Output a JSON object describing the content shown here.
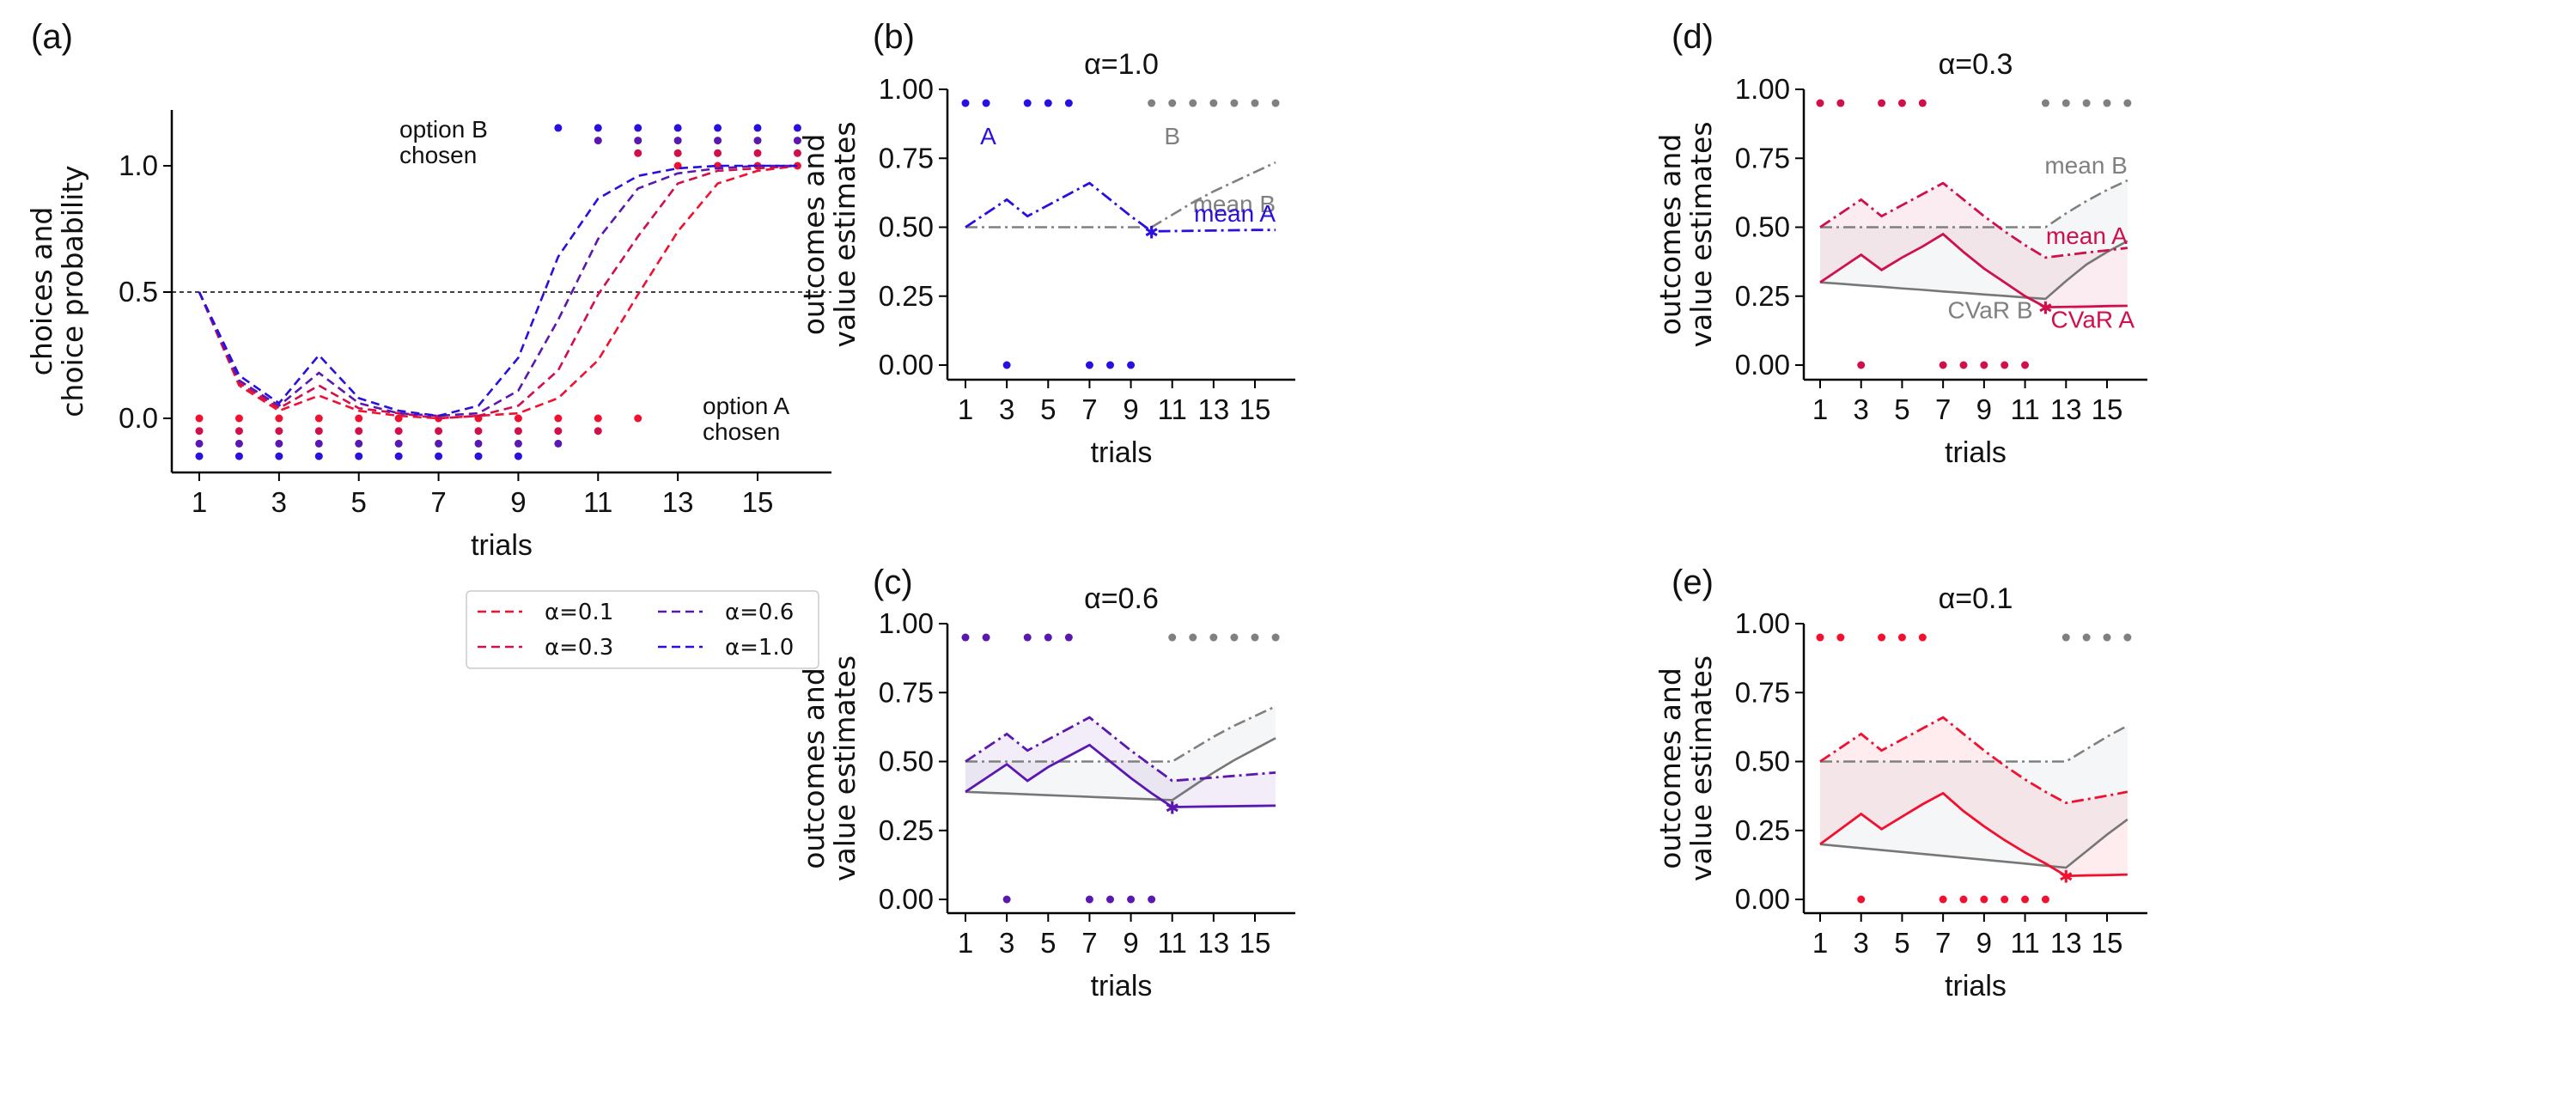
{
  "figure": {
    "panel_labels": [
      "(a)",
      "(b)",
      "(c)",
      "(d)",
      "(e)"
    ]
  },
  "colors": {
    "alpha_1.0": "#2a10e0",
    "alpha_0.6": "#5a18b0",
    "alpha_0.3": "#d0104a",
    "alpha_0.1": "#f01030",
    "option_b": "#808080"
  },
  "chart_data": [
    {
      "id": "a",
      "type": "line",
      "panel_label": "(a)",
      "title": "",
      "xlabel": "trials",
      "ylabel": "choices and\nchoice probability",
      "ylabel_lines": [
        "choices and",
        "choice probability"
      ],
      "x": [
        1,
        2,
        3,
        4,
        5,
        6,
        7,
        8,
        9,
        10,
        11,
        12,
        13,
        14,
        15,
        16
      ],
      "xticks": [
        1,
        3,
        5,
        7,
        9,
        11,
        13,
        15
      ],
      "yticks": [
        0.0,
        0.5,
        1.0
      ],
      "ytick_labels": [
        "0.0",
        "0.5",
        "1.0"
      ],
      "xlim": [
        0.25,
        17.1
      ],
      "ylim": [
        -0.22,
        1.22
      ],
      "reference_line": 0.5,
      "annotations": {
        "option_b": [
          "option B",
          "chosen"
        ],
        "option_a": [
          "option A",
          "chosen"
        ]
      },
      "series": [
        {
          "name": "α=0.1",
          "key": "alpha_0.1",
          "values": [
            0.5,
            0.13,
            0.03,
            0.09,
            0.03,
            0.01,
            0.0,
            0.01,
            0.02,
            0.08,
            0.23,
            0.49,
            0.74,
            0.93,
            0.98,
            1.0
          ],
          "choices": [
            "A",
            "A",
            "A",
            "A",
            "A",
            "A",
            "A",
            "A",
            "A",
            "A",
            "A",
            "A",
            "B",
            "B",
            "B",
            "B"
          ]
        },
        {
          "name": "α=0.3",
          "key": "alpha_0.3",
          "values": [
            0.5,
            0.14,
            0.04,
            0.13,
            0.04,
            0.02,
            0.0,
            0.01,
            0.05,
            0.19,
            0.49,
            0.72,
            0.93,
            0.98,
            0.99,
            1.0
          ],
          "choices": [
            "A",
            "A",
            "A",
            "A",
            "A",
            "A",
            "A",
            "A",
            "A",
            "A",
            "A",
            "B",
            "B",
            "B",
            "B",
            "B"
          ]
        },
        {
          "name": "α=0.6",
          "key": "alpha_0.6",
          "values": [
            0.5,
            0.15,
            0.05,
            0.18,
            0.06,
            0.02,
            0.01,
            0.02,
            0.11,
            0.39,
            0.71,
            0.91,
            0.97,
            0.99,
            1.0,
            1.0
          ],
          "choices": [
            "A",
            "A",
            "A",
            "A",
            "A",
            "A",
            "A",
            "A",
            "A",
            "A",
            "B",
            "B",
            "B",
            "B",
            "B",
            "B"
          ]
        },
        {
          "name": "α=1.0",
          "key": "alpha_1.0",
          "values": [
            0.5,
            0.17,
            0.06,
            0.25,
            0.08,
            0.03,
            0.01,
            0.05,
            0.24,
            0.64,
            0.87,
            0.96,
            0.99,
            1.0,
            1.0,
            1.0
          ],
          "choices": [
            "A",
            "A",
            "A",
            "A",
            "A",
            "A",
            "A",
            "A",
            "A",
            "B",
            "B",
            "B",
            "B",
            "B",
            "B",
            "B"
          ]
        }
      ],
      "legend": {
        "placement": "below",
        "columns": 2,
        "entries": [
          "α=0.1",
          "α=0.3",
          "α=0.6",
          "α=1.0"
        ]
      }
    },
    {
      "id": "b",
      "type": "line",
      "panel_label": "(b)",
      "title": "α=1.0",
      "key": "alpha_1.0",
      "xlabel": "trials",
      "ylabel_lines": [
        "outcomes and",
        "value estimates"
      ],
      "x": [
        1,
        2,
        3,
        4,
        5,
        6,
        7,
        8,
        9,
        10,
        11,
        12,
        13,
        14,
        15,
        16
      ],
      "xticks": [
        1,
        3,
        5,
        7,
        9,
        11,
        13,
        15
      ],
      "yticks": [
        0.0,
        0.25,
        0.5,
        0.75,
        1.0
      ],
      "ytick_labels": [
        "0.00",
        "0.25",
        "0.50",
        "0.75",
        "1.00"
      ],
      "ylim": [
        -0.105,
        1.0
      ],
      "switch_trial": 10,
      "outcomes_A": {
        "x": [
          1,
          2,
          3,
          4,
          5,
          6,
          7,
          8,
          9
        ],
        "y": [
          0.95,
          0.95,
          0,
          0.95,
          0.95,
          0.95,
          0,
          0,
          0
        ]
      },
      "outcomes_B": {
        "x": [
          10,
          11,
          12,
          13,
          14,
          15,
          16
        ],
        "y": [
          0.95,
          0.95,
          0.95,
          0.95,
          0.95,
          0.95,
          0.95
        ]
      },
      "mean_A": [
        0.5,
        0.55,
        0.6,
        0.54,
        0.58,
        0.62,
        0.66,
        0.6,
        0.54,
        0.485,
        0.486,
        0.487,
        0.488,
        0.489,
        0.49,
        0.49
      ],
      "mean_B": [
        0.5,
        0.5,
        0.5,
        0.5,
        0.5,
        0.5,
        0.5,
        0.5,
        0.5,
        0.5,
        0.545,
        0.59,
        0.63,
        0.665,
        0.7,
        0.735
      ],
      "cvar_A": null,
      "cvar_B": null,
      "labels": {
        "A": "A",
        "B": "B",
        "mean_A": "mean A",
        "mean_B": "mean B"
      }
    },
    {
      "id": "c",
      "type": "line",
      "panel_label": "(c)",
      "title": "α=0.6",
      "key": "alpha_0.6",
      "xlabel": "trials",
      "ylabel_lines": [
        "outcomes and",
        "value estimates"
      ],
      "x": [
        1,
        2,
        3,
        4,
        5,
        6,
        7,
        8,
        9,
        10,
        11,
        12,
        13,
        14,
        15,
        16
      ],
      "xticks": [
        1,
        3,
        5,
        7,
        9,
        11,
        13,
        15
      ],
      "yticks": [
        0.0,
        0.25,
        0.5,
        0.75,
        1.0
      ],
      "ytick_labels": [
        "0.00",
        "0.25",
        "0.50",
        "0.75",
        "1.00"
      ],
      "ylim": [
        -0.105,
        1.0
      ],
      "switch_trial": 11,
      "outcomes_A": {
        "x": [
          1,
          2,
          3,
          4,
          5,
          6,
          7,
          8,
          9,
          10
        ],
        "y": [
          0.95,
          0.95,
          0,
          0.95,
          0.95,
          0.95,
          0,
          0,
          0,
          0
        ]
      },
      "outcomes_B": {
        "x": [
          11,
          12,
          13,
          14,
          15,
          16
        ],
        "y": [
          0.95,
          0.95,
          0.95,
          0.95,
          0.95,
          0.95
        ]
      },
      "mean_A": [
        0.5,
        0.55,
        0.6,
        0.54,
        0.58,
        0.62,
        0.66,
        0.6,
        0.54,
        0.485,
        0.43,
        0.436,
        0.442,
        0.448,
        0.454,
        0.46
      ],
      "mean_B": [
        0.5,
        0.5,
        0.5,
        0.5,
        0.5,
        0.5,
        0.5,
        0.5,
        0.5,
        0.5,
        0.5,
        0.545,
        0.59,
        0.63,
        0.665,
        0.7
      ],
      "cvar_A": [
        0.39,
        0.44,
        0.49,
        0.43,
        0.48,
        0.52,
        0.56,
        0.5,
        0.44,
        0.385,
        0.335,
        0.336,
        0.337,
        0.338,
        0.339,
        0.34
      ],
      "cvar_B": [
        0.39,
        0.387,
        0.384,
        0.381,
        0.378,
        0.375,
        0.372,
        0.369,
        0.366,
        0.363,
        0.36,
        0.41,
        0.46,
        0.505,
        0.545,
        0.585
      ],
      "labels": {}
    },
    {
      "id": "d",
      "type": "line",
      "panel_label": "(d)",
      "title": "α=0.3",
      "key": "alpha_0.3",
      "xlabel": "trials",
      "ylabel_lines": [
        "outcomes and",
        "value estimates"
      ],
      "x": [
        1,
        2,
        3,
        4,
        5,
        6,
        7,
        8,
        9,
        10,
        11,
        12,
        13,
        14,
        15,
        16
      ],
      "xticks": [
        1,
        3,
        5,
        7,
        9,
        11,
        13,
        15
      ],
      "yticks": [
        0.0,
        0.25,
        0.5,
        0.75,
        1.0
      ],
      "ytick_labels": [
        "0.00",
        "0.25",
        "0.50",
        "0.75",
        "1.00"
      ],
      "ylim": [
        -0.105,
        1.0
      ],
      "switch_trial": 12,
      "outcomes_A": {
        "x": [
          1,
          2,
          3,
          4,
          5,
          6,
          7,
          8,
          9,
          10,
          11
        ],
        "y": [
          0.95,
          0.95,
          0,
          0.95,
          0.95,
          0.95,
          0,
          0,
          0,
          0,
          0
        ]
      },
      "outcomes_B": {
        "x": [
          12,
          13,
          14,
          15,
          16
        ],
        "y": [
          0.95,
          0.95,
          0.95,
          0.95,
          0.95
        ]
      },
      "mean_A": [
        0.5,
        0.55,
        0.6,
        0.54,
        0.58,
        0.62,
        0.66,
        0.6,
        0.54,
        0.485,
        0.435,
        0.39,
        0.399,
        0.408,
        0.416,
        0.425
      ],
      "mean_B": [
        0.5,
        0.5,
        0.5,
        0.5,
        0.5,
        0.5,
        0.5,
        0.5,
        0.5,
        0.5,
        0.5,
        0.5,
        0.55,
        0.595,
        0.635,
        0.67
      ],
      "cvar_A": [
        0.3,
        0.35,
        0.4,
        0.345,
        0.39,
        0.43,
        0.475,
        0.41,
        0.35,
        0.3,
        0.25,
        0.21,
        0.211,
        0.212,
        0.214,
        0.215
      ],
      "cvar_B": [
        0.3,
        0.295,
        0.289,
        0.284,
        0.278,
        0.273,
        0.267,
        0.262,
        0.256,
        0.251,
        0.245,
        0.24,
        0.305,
        0.365,
        0.41,
        0.45
      ],
      "labels": {
        "mean_A": "mean A",
        "mean_B": "mean B",
        "cvar_A": "CVaR A",
        "cvar_B": "CVaR B"
      }
    },
    {
      "id": "e",
      "type": "line",
      "panel_label": "(e)",
      "title": "α=0.1",
      "key": "alpha_0.1",
      "xlabel": "trials",
      "ylabel_lines": [
        "outcomes and",
        "value estimates"
      ],
      "x": [
        1,
        2,
        3,
        4,
        5,
        6,
        7,
        8,
        9,
        10,
        11,
        12,
        13,
        14,
        15,
        16
      ],
      "xticks": [
        1,
        3,
        5,
        7,
        9,
        11,
        13,
        15
      ],
      "yticks": [
        0.0,
        0.25,
        0.5,
        0.75,
        1.0
      ],
      "ytick_labels": [
        "0.00",
        "0.25",
        "0.50",
        "0.75",
        "1.00"
      ],
      "ylim": [
        -0.105,
        1.0
      ],
      "switch_trial": 13,
      "outcomes_A": {
        "x": [
          1,
          2,
          3,
          4,
          5,
          6,
          7,
          8,
          9,
          10,
          11,
          12
        ],
        "y": [
          0.95,
          0.95,
          0,
          0.95,
          0.95,
          0.95,
          0,
          0,
          0,
          0,
          0,
          0
        ]
      },
      "outcomes_B": {
        "x": [
          13,
          14,
          15,
          16
        ],
        "y": [
          0.95,
          0.95,
          0.95,
          0.95
        ]
      },
      "mean_A": [
        0.5,
        0.55,
        0.6,
        0.54,
        0.58,
        0.62,
        0.66,
        0.6,
        0.54,
        0.485,
        0.435,
        0.39,
        0.35,
        0.363,
        0.376,
        0.39
      ],
      "mean_B": [
        0.5,
        0.5,
        0.5,
        0.5,
        0.5,
        0.5,
        0.5,
        0.5,
        0.5,
        0.5,
        0.5,
        0.5,
        0.5,
        0.545,
        0.59,
        0.63
      ],
      "cvar_A": [
        0.2,
        0.255,
        0.31,
        0.255,
        0.3,
        0.345,
        0.385,
        0.32,
        0.265,
        0.215,
        0.17,
        0.13,
        0.085,
        0.087,
        0.088,
        0.09
      ],
      "cvar_B": [
        0.2,
        0.193,
        0.186,
        0.179,
        0.172,
        0.165,
        0.158,
        0.151,
        0.144,
        0.137,
        0.13,
        0.122,
        0.115,
        0.175,
        0.235,
        0.29
      ],
      "labels": {}
    }
  ]
}
